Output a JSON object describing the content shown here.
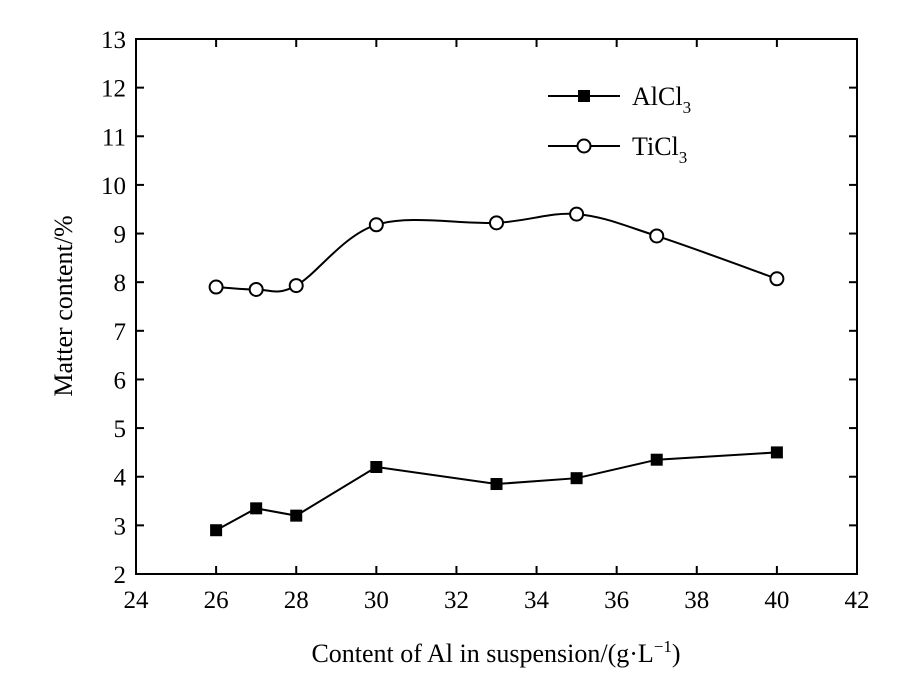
{
  "chart_data": {
    "type": "line",
    "xlabel": "Content of Al in suspension/(g·L",
    "xlabel_sup": "−1",
    "xlabel_close": ")",
    "ylabel": "Matter content/%",
    "xlim": [
      24,
      42
    ],
    "ylim": [
      2,
      13
    ],
    "xticks": [
      24,
      26,
      28,
      30,
      32,
      34,
      36,
      38,
      40,
      42
    ],
    "yticks": [
      2,
      3,
      4,
      5,
      6,
      7,
      8,
      9,
      10,
      11,
      12,
      13
    ],
    "grid": false,
    "legend_position": "top-right",
    "series": [
      {
        "name": "AlCl",
        "name_sub": "3",
        "marker": "filled-square",
        "line": "polyline",
        "color": "#000000",
        "x": [
          26,
          27,
          28,
          30,
          33,
          35,
          37,
          40
        ],
        "y": [
          2.9,
          3.35,
          3.2,
          4.2,
          3.85,
          3.97,
          4.35,
          4.5
        ]
      },
      {
        "name": "TiCl",
        "name_sub": "3",
        "marker": "open-circle",
        "line": "smooth",
        "color": "#000000",
        "x": [
          26,
          27,
          28,
          30,
          33,
          35,
          37,
          40
        ],
        "y": [
          7.9,
          7.85,
          7.93,
          9.18,
          9.22,
          9.4,
          8.95,
          8.07
        ]
      }
    ]
  }
}
